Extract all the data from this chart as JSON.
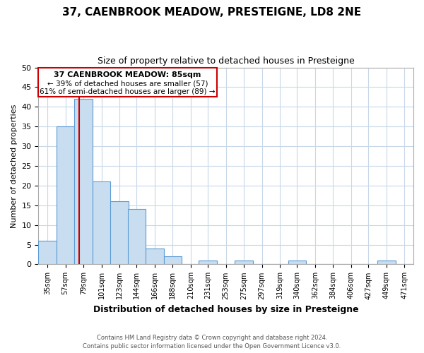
{
  "title": "37, CAENBROOK MEADOW, PRESTEIGNE, LD8 2NE",
  "subtitle": "Size of property relative to detached houses in Presteigne",
  "xlabel": "Distribution of detached houses by size in Presteigne",
  "ylabel": "Number of detached properties",
  "bin_labels": [
    "35sqm",
    "57sqm",
    "79sqm",
    "101sqm",
    "123sqm",
    "144sqm",
    "166sqm",
    "188sqm",
    "210sqm",
    "231sqm",
    "253sqm",
    "275sqm",
    "297sqm",
    "319sqm",
    "340sqm",
    "362sqm",
    "384sqm",
    "406sqm",
    "427sqm",
    "449sqm",
    "471sqm"
  ],
  "bin_edges": [
    35,
    57,
    79,
    101,
    123,
    144,
    166,
    188,
    210,
    231,
    253,
    275,
    297,
    319,
    340,
    362,
    384,
    406,
    427,
    449,
    471
  ],
  "bar_heights": [
    6,
    35,
    42,
    21,
    16,
    14,
    4,
    2,
    0,
    1,
    0,
    1,
    0,
    0,
    1,
    0,
    0,
    0,
    0,
    1,
    0
  ],
  "bar_color": "#c9ddf0",
  "bar_edge_color": "#5b9bd5",
  "vline_x": 85,
  "vline_color": "#cc0000",
  "ylim": [
    0,
    50
  ],
  "yticks": [
    0,
    5,
    10,
    15,
    20,
    25,
    30,
    35,
    40,
    45,
    50
  ],
  "annotation_title": "37 CAENBROOK MEADOW: 85sqm",
  "annotation_line1": "← 39% of detached houses are smaller (57)",
  "annotation_line2": "61% of semi-detached houses are larger (89) →",
  "footer_line1": "Contains HM Land Registry data © Crown copyright and database right 2024.",
  "footer_line2": "Contains public sector information licensed under the Open Government Licence v3.0.",
  "bg_color": "#ffffff",
  "grid_color": "#c8d8e8",
  "ann_box_color": "#cc0000",
  "xlim_right": 493
}
